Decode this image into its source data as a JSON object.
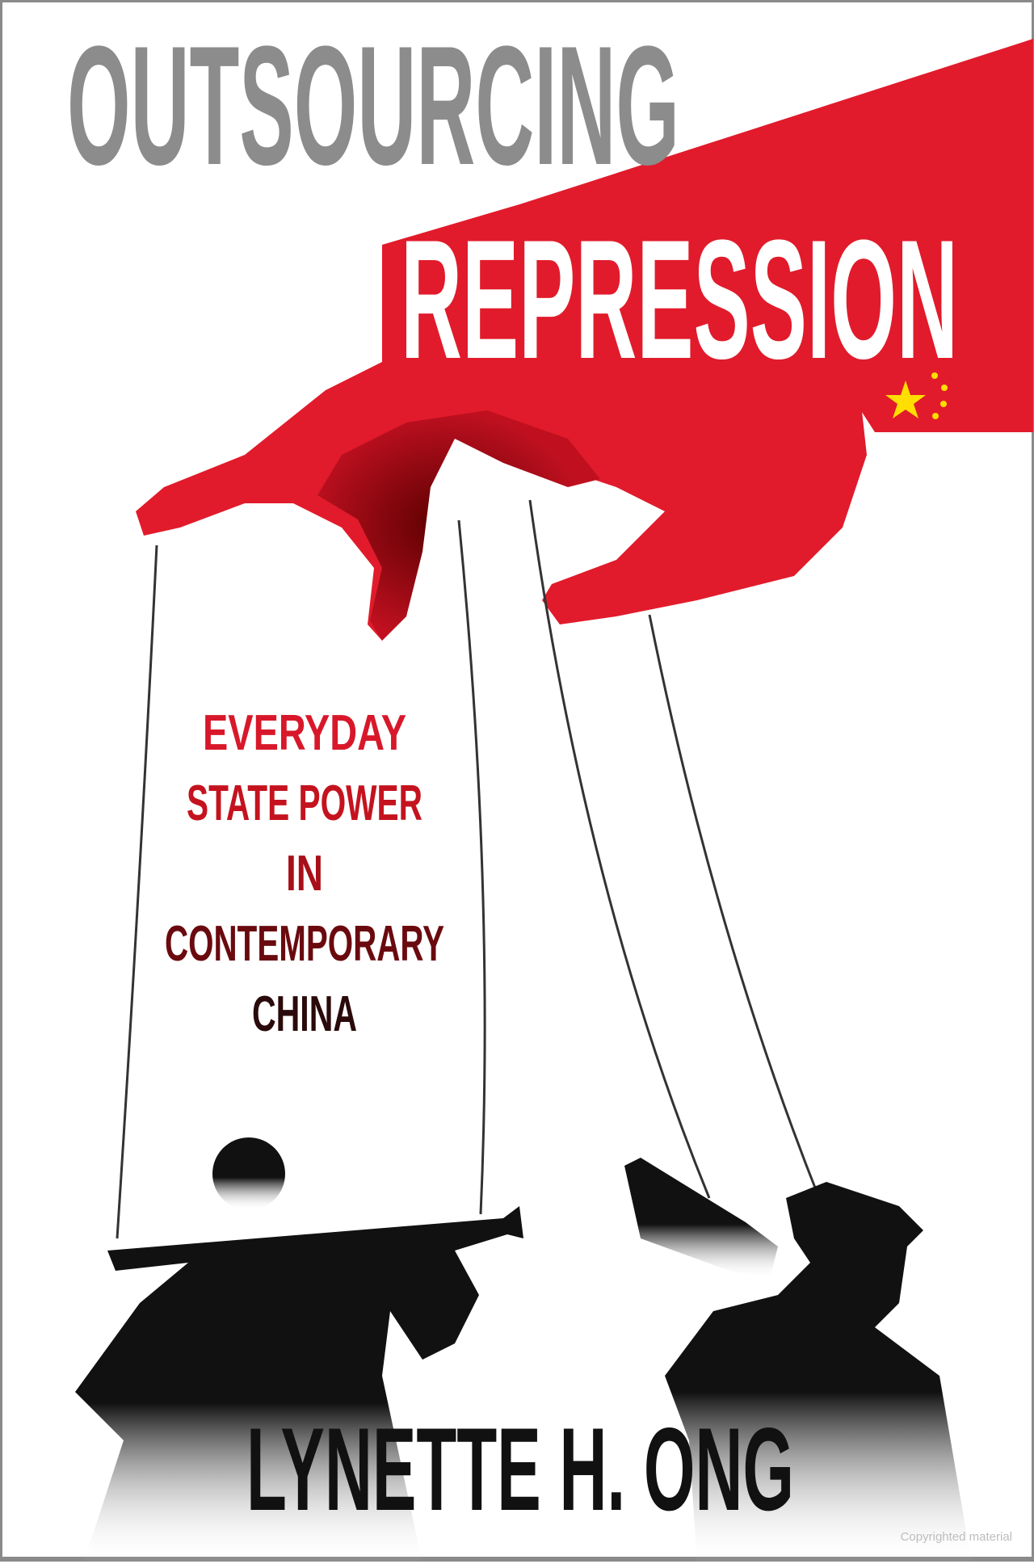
{
  "cover": {
    "title_line1": "OUTSOURCING",
    "title_line2": "REPRESSION",
    "subtitle": [
      "EVERYDAY",
      "STATE POWER",
      "IN",
      "CONTEMPORARY",
      "CHINA"
    ],
    "author": "LYNETTE H. ONG",
    "watermark": "Copyrighted material"
  },
  "colors": {
    "flag_red": "#e11b2b",
    "dark_red": "#6b0000",
    "title_gray": "#8c8c8c",
    "star_yellow": "#ffde00",
    "author_black": "#111111"
  }
}
